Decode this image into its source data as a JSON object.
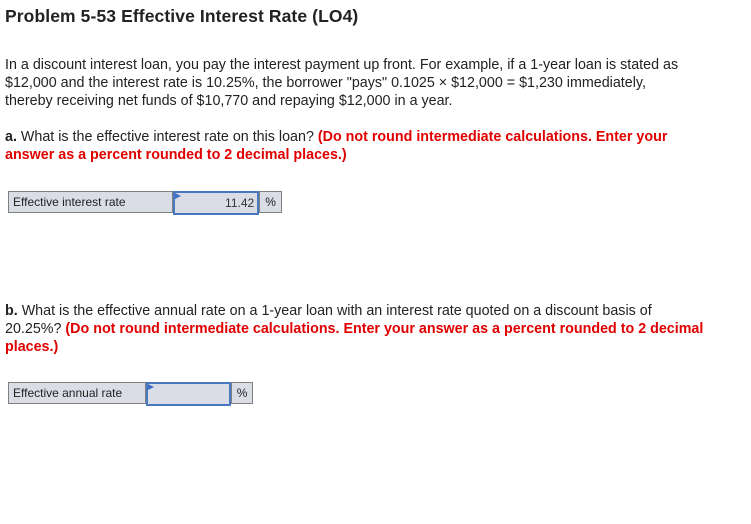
{
  "title": "Problem 5-53 Effective Interest Rate (LO4)",
  "intro_lines": [
    "In a discount interest loan, you pay the interest payment up front. For example, if a 1-year loan is stated as",
    "$12,000 and the interest rate is 10.25%, the borrower \"pays\" 0.1025 × $12,000 = $1,230 immediately,",
    "thereby receiving net funds of $10,770 and repaying $12,000 in a year."
  ],
  "part_a": {
    "letter": "a.",
    "question": " What is the effective interest rate on this loan? ",
    "instruction_line1": "(Do not round intermediate calculations. Enter your",
    "instruction_line2": "answer as a percent rounded to 2 decimal places.)",
    "field_label": "Effective interest rate",
    "field_value": "11.42",
    "unit": "%"
  },
  "part_b": {
    "letter": "b.",
    "question_line1": " What is the effective annual rate on a 1-year loan with an interest rate quoted on a discount basis of",
    "question_line2": "20.25%? ",
    "instruction_line2": "(Do not round intermediate calculations. Enter your answer as a percent rounded to 2 decimal",
    "instruction_line3": "places.)",
    "field_label": "Effective annual rate",
    "field_value": "",
    "unit": "%"
  },
  "colors": {
    "instruction": "#e00000",
    "input_border": "#4a78c0",
    "field_bg": "#dadde6"
  }
}
